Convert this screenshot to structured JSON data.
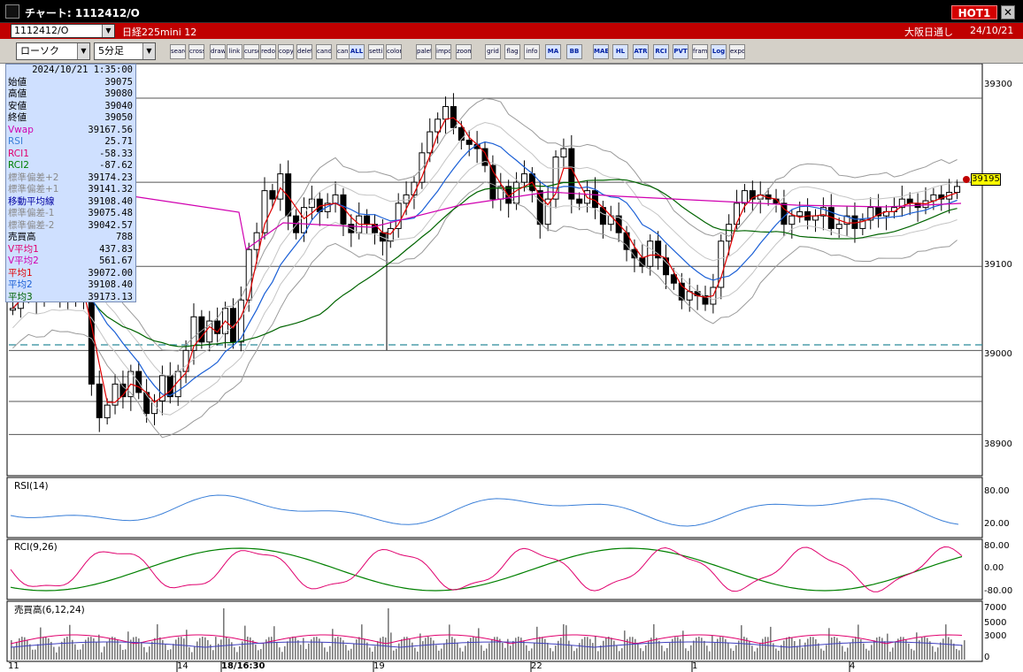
{
  "window": {
    "title": "チャート: 1112412/O",
    "hot_label": "HOT1",
    "close_glyph": "✕"
  },
  "infobar": {
    "symbol": "1112412/O",
    "product": "日経225mini 12",
    "market": "大阪日通し",
    "date": "24/10/21"
  },
  "toolbar": {
    "chart_type": "ローソク",
    "timeframe": "5分足",
    "tools": [
      "search",
      "cross",
      "draw",
      "link",
      "cursor",
      "redo",
      "copy",
      "delete",
      "candle",
      "candle2",
      "ALL",
      "settings",
      "color",
      "palette",
      "import",
      "zoom",
      "grid",
      "flag",
      "info",
      "MA",
      "BB",
      "MAE",
      "HL",
      "ATR",
      "RCI",
      "PVT",
      "frame",
      "Log",
      "export"
    ]
  },
  "colors": {
    "accent_red": "#c00000",
    "info_panel": "#cfe0ff",
    "candle": "#000000",
    "ma1": "#e00000",
    "ma2": "#1a5fd6",
    "ma3": "#006400",
    "vwap": "#d000b0",
    "bband": "#a0a0a0",
    "rsi": "#3a7fd8",
    "rci1": "#e0006e",
    "rci2": "#008000"
  },
  "info_panel": {
    "timestamp": "2024/10/21 1:35:00",
    "rows": [
      {
        "label": "始値",
        "value": "39075",
        "color": "#000000"
      },
      {
        "label": "高値",
        "value": "39080",
        "color": "#000000"
      },
      {
        "label": "安値",
        "value": "39040",
        "color": "#000000"
      },
      {
        "label": "終値",
        "value": "39050",
        "color": "#000000"
      },
      {
        "label": "Vwap",
        "value": "39167.56",
        "color": "#d000b0"
      },
      {
        "label": "RSI",
        "value": "25.71",
        "color": "#3a7fd8"
      },
      {
        "label": "RCI1",
        "value": "-58.33",
        "color": "#e0006e"
      },
      {
        "label": "RCI2",
        "value": "-87.62",
        "color": "#008000"
      },
      {
        "label": "標準偏差+2",
        "value": "39174.23",
        "color": "#8a8a8a"
      },
      {
        "label": "標準偏差+1",
        "value": "39141.32",
        "color": "#8a8a8a"
      },
      {
        "label": "移動平均線",
        "value": "39108.40",
        "color": "#0000a0"
      },
      {
        "label": "標準偏差-1",
        "value": "39075.48",
        "color": "#8a8a8a"
      },
      {
        "label": "標準偏差-2",
        "value": "39042.57",
        "color": "#8a8a8a"
      },
      {
        "label": "売買高",
        "value": "788",
        "color": "#000000"
      },
      {
        "label": "V平均1",
        "value": "437.83",
        "color": "#e0006e"
      },
      {
        "label": "V平均2",
        "value": "561.67",
        "color": "#d000b0"
      },
      {
        "label": "平均1",
        "value": "39072.00",
        "color": "#e00000"
      },
      {
        "label": "平均2",
        "value": "39108.40",
        "color": "#1a5fd6"
      },
      {
        "label": "平均3",
        "value": "39173.13",
        "color": "#006400"
      }
    ]
  },
  "main_chart": {
    "price_axis": [
      "39300",
      "39200",
      "39100",
      "39000",
      "38900"
    ],
    "current_price": "39195",
    "dashed_level": 39010
  },
  "rsi_panel": {
    "title": "RSI(14)",
    "axis": [
      "80.00",
      "20.00"
    ]
  },
  "rci_panel": {
    "title": "RCI(9,26)",
    "axis": [
      "80.00",
      "0.00",
      "-80.00"
    ]
  },
  "volume_panel": {
    "title": "売買高(6,12,24)",
    "axis": [
      "7000",
      "5000",
      "3000",
      "0"
    ]
  },
  "date_axis": [
    "11",
    "14",
    "18/16:30",
    "19",
    "22",
    "1",
    "4"
  ],
  "chart_data": {
    "type": "candlestick",
    "ylim": [
      38830,
      39320
    ],
    "close": [
      39050,
      39070,
      39085,
      39060,
      39075,
      39090,
      39065,
      39080,
      39060,
      39070,
      38960,
      38920,
      38935,
      38960,
      38945,
      38975,
      38950,
      38925,
      38940,
      38970,
      38945,
      38975,
      39000,
      39040,
      39010,
      39035,
      39020,
      39050,
      39010,
      39060,
      39120,
      39140,
      39190,
      39180,
      39210,
      39160,
      39140,
      39170,
      39180,
      39165,
      39175,
      39185,
      39150,
      39140,
      39160,
      39150,
      39140,
      39130,
      39145,
      39175,
      39185,
      39200,
      39235,
      39260,
      39275,
      39290,
      39265,
      39250,
      39245,
      39240,
      39220,
      39180,
      39195,
      39175,
      39200,
      39210,
      39190,
      39150,
      39180,
      39230,
      39240,
      39180,
      39175,
      39190,
      39170,
      39150,
      39160,
      39140,
      39120,
      39110,
      39100,
      39130,
      39110,
      39090,
      39080,
      39060,
      39070,
      39065,
      39055,
      39075,
      39130,
      39150,
      39175,
      39190,
      39180,
      39185,
      39180,
      39175,
      39150,
      39160,
      39165,
      39155,
      39160,
      39170,
      39145,
      39150,
      39160,
      39145,
      39155,
      39170,
      39160,
      39165,
      39170,
      39180,
      39175,
      39170,
      39178,
      39185,
      39180,
      39188,
      39195
    ],
    "vwap": 39167.56
  }
}
